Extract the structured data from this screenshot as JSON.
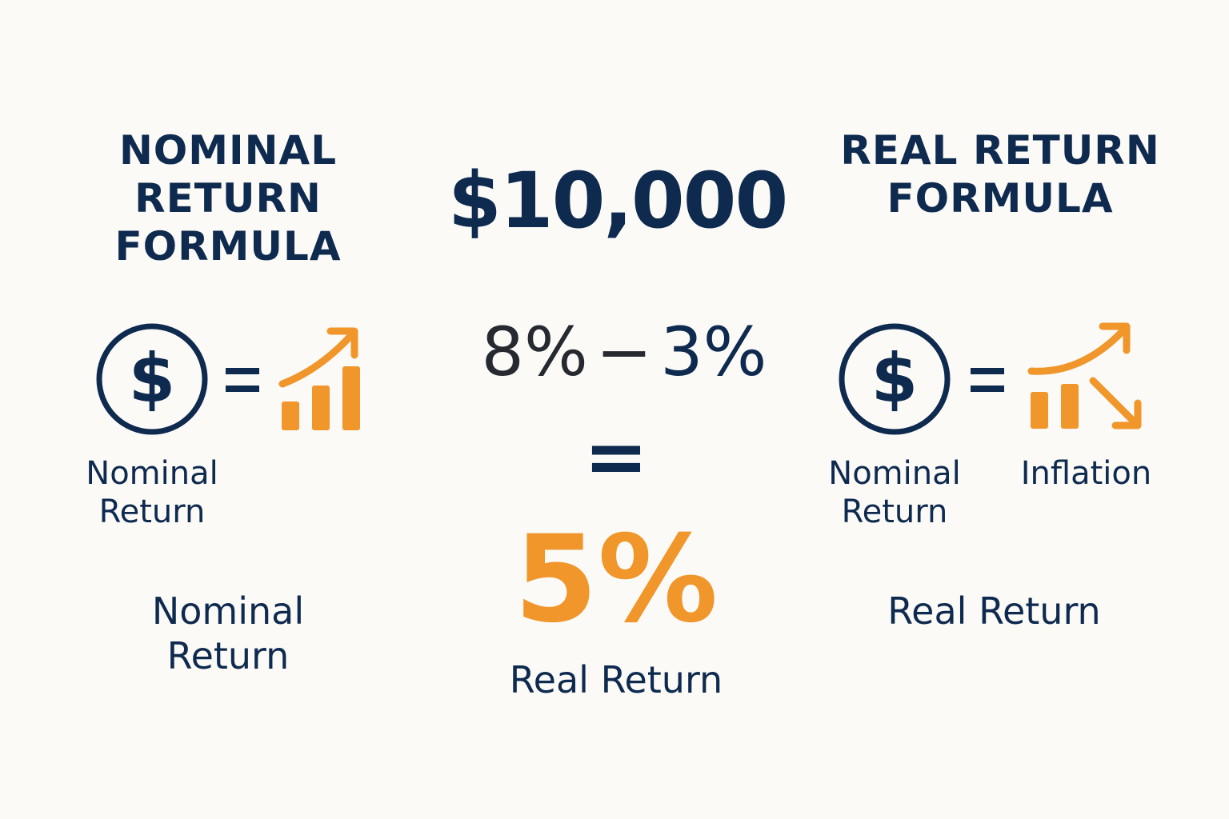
{
  "colors": {
    "navy": "#0f2a4f",
    "orange": "#f0962a",
    "dark": "#262a30",
    "background": "#fbfaf7"
  },
  "left": {
    "title": "NOMINAL\nRETURN\nFORMULA",
    "icon_label": "Nominal\nReturn",
    "caption": "Nominal\nReturn",
    "icons": [
      "dollar-circle-icon",
      "equals-icon",
      "growth-chart-icon"
    ]
  },
  "center": {
    "amount": "$10,000",
    "nominal_rate": "8%",
    "minus": "−",
    "inflation_rate": "3%",
    "equals": "=",
    "result": "5%",
    "result_label": "Real Return"
  },
  "right": {
    "title": "REAL RETURN\nFORMULA",
    "icon_label_nominal": "Nominal\nReturn",
    "icon_label_inflation": "Inflation",
    "caption": "Real Return",
    "icons": [
      "dollar-circle-icon",
      "equals-icon",
      "inflation-chart-icon"
    ]
  }
}
